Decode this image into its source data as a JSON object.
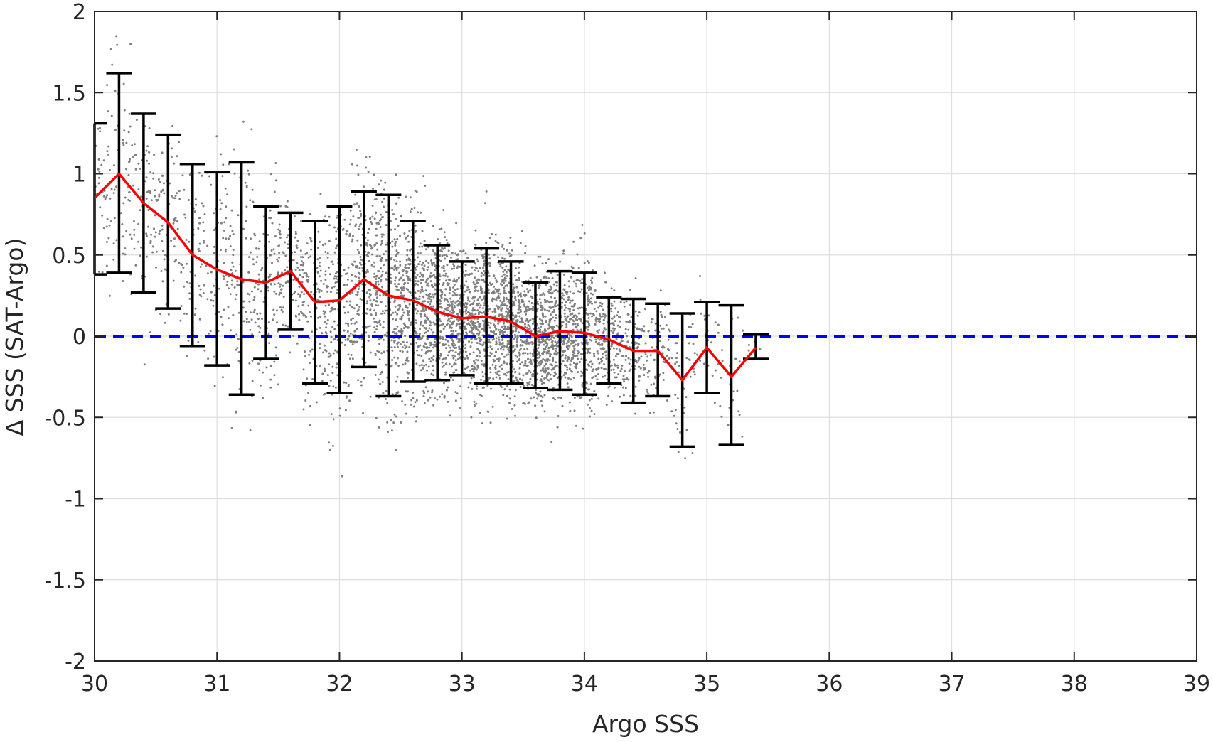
{
  "chart_data": {
    "type": "scatter",
    "title": "",
    "xlabel": "Argo SSS",
    "ylabel": "Δ SSS (SAT-Argo)",
    "xlim": [
      30,
      39
    ],
    "ylim": [
      -2,
      2
    ],
    "x_ticks": [
      30,
      31,
      32,
      33,
      34,
      35,
      36,
      37,
      38,
      39
    ],
    "y_ticks": [
      -2,
      -1.5,
      -1,
      -0.5,
      0,
      0.5,
      1,
      1.5,
      2
    ],
    "x_tick_labels": [
      "30",
      "31",
      "32",
      "33",
      "34",
      "35",
      "36",
      "37",
      "38",
      "39"
    ],
    "y_tick_labels": [
      "-2",
      "-1.5",
      "-1",
      "-0.5",
      "0",
      "0.5",
      "1",
      "1.5",
      "2"
    ],
    "grid": true,
    "legend": "none",
    "colors": {
      "scatter": "#808080",
      "mean_line": "#ff0000",
      "error_bars": "#000000",
      "zero_line": "#0000ff",
      "grid": "#dedede",
      "axes": "#262626"
    },
    "series": [
      {
        "kind": "binned-mean",
        "x": [
          30.0,
          30.2,
          30.4,
          30.6,
          30.8,
          31.0,
          31.2,
          31.4,
          31.6,
          31.8,
          32.0,
          32.2,
          32.4,
          32.6,
          32.8,
          33.0,
          33.2,
          33.4,
          33.6,
          33.8,
          34.0,
          34.2,
          34.4,
          34.6,
          34.8,
          35.0,
          35.2,
          35.4
        ],
        "y": [
          0.85,
          1.0,
          0.82,
          0.7,
          0.5,
          0.41,
          0.35,
          0.33,
          0.4,
          0.21,
          0.22,
          0.35,
          0.25,
          0.22,
          0.15,
          0.11,
          0.12,
          0.09,
          0.0,
          0.03,
          0.02,
          -0.02,
          -0.09,
          -0.09,
          -0.27,
          -0.07,
          -0.25,
          -0.07
        ],
        "lower": [
          0.38,
          0.39,
          0.27,
          0.17,
          -0.06,
          -0.18,
          -0.36,
          -0.14,
          0.04,
          -0.29,
          -0.35,
          -0.19,
          -0.37,
          -0.28,
          -0.27,
          -0.24,
          -0.29,
          -0.29,
          -0.32,
          -0.33,
          -0.36,
          -0.29,
          -0.41,
          -0.37,
          -0.68,
          -0.35,
          -0.67,
          -0.14
        ],
        "upper": [
          1.31,
          1.62,
          1.37,
          1.24,
          1.06,
          1.01,
          1.07,
          0.8,
          0.76,
          0.71,
          0.8,
          0.89,
          0.87,
          0.71,
          0.56,
          0.46,
          0.54,
          0.46,
          0.33,
          0.4,
          0.39,
          0.24,
          0.23,
          0.2,
          0.14,
          0.21,
          0.19,
          0.01
        ]
      },
      {
        "kind": "reference-line",
        "y": 0
      }
    ]
  }
}
